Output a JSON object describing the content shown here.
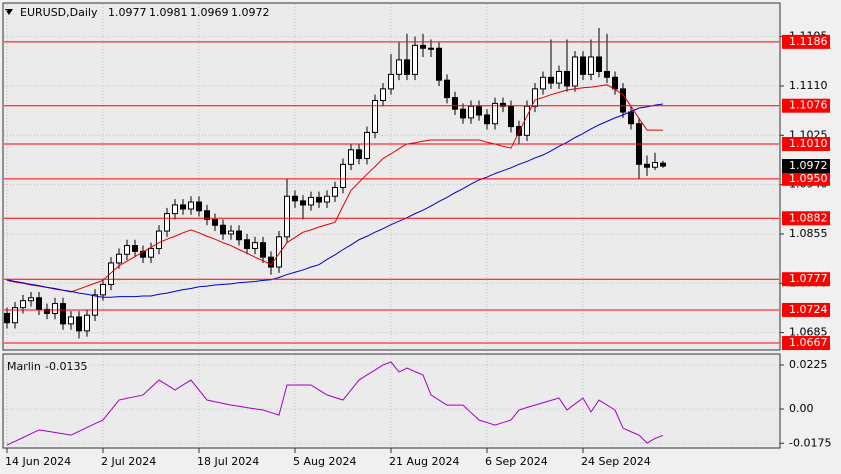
{
  "chart_data": [
    {
      "type": "candlestick",
      "title": "EURUSD,Daily",
      "categories": [
        "14 Jun 2024",
        null,
        null,
        null,
        null,
        null,
        null,
        null,
        null,
        null,
        null,
        null,
        "2 Jul 2024",
        null,
        null,
        null,
        null,
        null,
        null,
        null,
        null,
        null,
        null,
        null,
        "18 Jul 2024",
        null,
        null,
        null,
        null,
        null,
        null,
        null,
        null,
        null,
        null,
        null,
        "5 Aug 2024",
        null,
        null,
        null,
        null,
        null,
        null,
        null,
        null,
        null,
        null,
        null,
        "21 Aug 2024",
        null,
        null,
        null,
        null,
        null,
        null,
        null,
        null,
        null,
        null,
        null,
        "6 Sep 2024",
        null,
        null,
        null,
        null,
        null,
        null,
        null,
        null,
        null,
        null,
        null,
        "24 Sep 2024",
        null,
        null,
        null,
        null,
        null,
        null,
        null,
        null,
        null,
        null
      ],
      "open": [
        1.0718,
        1.0702,
        1.0728,
        1.074,
        1.0745,
        1.0725,
        1.0718,
        1.0735,
        1.07,
        1.0712,
        1.0688,
        1.0715,
        1.075,
        1.0768,
        1.0805,
        1.082,
        1.0835,
        1.0825,
        1.0815,
        1.083,
        1.086,
        1.089,
        1.0905,
        1.0898,
        1.091,
        1.0895,
        1.088,
        1.087,
        1.0855,
        1.086,
        1.0845,
        1.083,
        1.084,
        1.0815,
        1.0798,
        1.085,
        1.092,
        1.0912,
        1.0905,
        1.0918,
        1.091,
        1.092,
        1.0935,
        1.0975,
        1.1,
        1.0985,
        1.103,
        1.1085,
        1.1105,
        1.113,
        1.1155,
        1.113,
        1.118,
        1.1175,
        1.1175,
        1.112,
        1.109,
        1.107,
        1.1055,
        1.1075,
        1.106,
        1.1045,
        1.108,
        1.1075,
        1.104,
        1.1025,
        1.1075,
        1.1105,
        1.1125,
        1.1115,
        1.1135,
        1.111,
        1.116,
        1.113,
        1.116,
        1.1135,
        1.1125,
        1.1105,
        1.1065,
        1.1045,
        1.0975,
        1.097,
        1.0977
      ],
      "high": [
        1.0728,
        1.0738,
        1.075,
        1.0755,
        1.0755,
        1.0735,
        1.0745,
        1.0745,
        1.0722,
        1.0722,
        1.0725,
        1.076,
        1.0778,
        1.0815,
        1.083,
        1.0845,
        1.0845,
        1.0835,
        1.084,
        1.087,
        1.09,
        1.0915,
        1.0915,
        1.092,
        1.092,
        1.0905,
        1.089,
        1.088,
        1.087,
        1.087,
        1.0855,
        1.085,
        1.085,
        1.0825,
        1.086,
        1.095,
        1.093,
        1.0922,
        1.0928,
        1.0928,
        1.093,
        1.0945,
        1.0985,
        1.101,
        1.101,
        1.104,
        1.1095,
        1.1115,
        1.1165,
        1.1185,
        1.12,
        1.1195,
        1.12,
        1.119,
        1.1185,
        1.113,
        1.11,
        1.108,
        1.1085,
        1.1085,
        1.107,
        1.109,
        1.109,
        1.1085,
        1.105,
        1.1085,
        1.1115,
        1.1135,
        1.119,
        1.1145,
        1.119,
        1.117,
        1.117,
        1.119,
        1.121,
        1.12,
        1.1135,
        1.1115,
        1.1075,
        1.1055,
        1.099,
        1.0995,
        1.0981
      ],
      "low": [
        1.0692,
        1.0692,
        1.0718,
        1.073,
        1.0715,
        1.0708,
        1.0708,
        1.069,
        1.069,
        1.0675,
        1.0678,
        1.0705,
        1.074,
        1.0758,
        1.0795,
        1.081,
        1.0815,
        1.0805,
        1.0805,
        1.082,
        1.085,
        1.088,
        1.0888,
        1.0888,
        1.0885,
        1.087,
        1.086,
        1.0845,
        1.0845,
        1.0835,
        1.082,
        1.082,
        1.0805,
        1.0785,
        1.0788,
        1.084,
        1.09,
        1.088,
        1.0895,
        1.09,
        1.09,
        1.091,
        1.0925,
        1.0965,
        1.0975,
        1.0975,
        1.102,
        1.1075,
        1.1095,
        1.112,
        1.112,
        1.112,
        1.116,
        1.116,
        1.111,
        1.108,
        1.106,
        1.1045,
        1.1045,
        1.105,
        1.1035,
        1.1035,
        1.1065,
        1.103,
        1.101,
        1.1015,
        1.1065,
        1.1095,
        1.1105,
        1.1105,
        1.11,
        1.11,
        1.112,
        1.112,
        1.1125,
        1.1115,
        1.1095,
        1.1055,
        1.1035,
        1.095,
        1.0955,
        1.0965,
        1.0969
      ],
      "close": [
        1.0702,
        1.0728,
        1.074,
        1.0745,
        1.0725,
        1.0718,
        1.0735,
        1.07,
        1.0712,
        1.0688,
        1.0715,
        1.075,
        1.0768,
        1.0805,
        1.082,
        1.0835,
        1.0825,
        1.0815,
        1.083,
        1.086,
        1.089,
        1.0905,
        1.0898,
        1.091,
        1.0895,
        1.088,
        1.087,
        1.0855,
        1.086,
        1.0845,
        1.083,
        1.084,
        1.0815,
        1.0798,
        1.085,
        1.092,
        1.0912,
        1.0905,
        1.0918,
        1.091,
        1.092,
        1.0935,
        1.0975,
        1.1,
        1.0985,
        1.103,
        1.1085,
        1.1105,
        1.113,
        1.1155,
        1.113,
        1.118,
        1.1175,
        1.1175,
        1.112,
        1.109,
        1.107,
        1.1055,
        1.1075,
        1.106,
        1.1045,
        1.108,
        1.1075,
        1.104,
        1.1025,
        1.1075,
        1.1105,
        1.1125,
        1.1115,
        1.1135,
        1.111,
        1.116,
        1.113,
        1.116,
        1.1135,
        1.1125,
        1.1105,
        1.1065,
        1.1045,
        1.0975,
        1.097,
        1.0978,
        1.0972
      ],
      "bull_color": "#ffffff",
      "bear_color": "#000000",
      "series": [
        {
          "color": "#e00000",
          "values": [
            1.0775,
            1.0772,
            1.077,
            1.0767,
            1.0765,
            1.0763,
            1.076,
            1.0758,
            1.0755,
            1.076,
            1.0765,
            1.077,
            1.0775,
            1.0788,
            1.08,
            1.0808,
            1.0816,
            1.0824,
            1.0832,
            1.084,
            1.0846,
            1.0851,
            1.0857,
            1.0862,
            1.0857,
            1.0851,
            1.0846,
            1.084,
            1.0835,
            1.0828,
            1.0822,
            1.0815,
            1.0809,
            1.0802,
            1.0821,
            1.084,
            1.0849,
            1.0858,
            1.0862,
            1.0867,
            1.0871,
            1.0875,
            1.0903,
            1.093,
            1.0944,
            1.0958,
            1.0971,
            1.0985,
            1.0993,
            1.1002,
            1.101,
            1.1012,
            1.1015,
            1.1017,
            1.1017,
            1.1017,
            1.1017,
            1.1017,
            1.1017,
            1.1017,
            1.1013,
            1.101,
            1.1006,
            1.1003,
            1.1031,
            1.1058,
            1.1086,
            1.109,
            1.1095,
            1.1099,
            1.1103,
            1.1105,
            1.1107,
            1.1108,
            1.111,
            1.1112,
            1.1104,
            1.1095,
            1.1075,
            1.1054,
            1.1034,
            1.1034,
            1.1034
          ]
        },
        {
          "color": "#0000cc",
          "values": [
            1.0776,
            1.0773,
            1.0771,
            1.0768,
            1.0766,
            1.0763,
            1.0761,
            1.0758,
            1.0756,
            1.0753,
            1.0751,
            1.0748,
            1.0746,
            1.0746,
            1.0747,
            1.0747,
            1.0747,
            1.0748,
            1.0748,
            1.0751,
            1.0753,
            1.0756,
            1.0759,
            1.0761,
            1.0764,
            1.0765,
            1.0767,
            1.0768,
            1.0769,
            1.0771,
            1.0772,
            1.0773,
            1.0775,
            1.0776,
            1.078,
            1.0785,
            1.0789,
            1.0793,
            1.0798,
            1.0802,
            1.0811,
            1.0819,
            1.0828,
            1.0836,
            1.0845,
            1.0851,
            1.0858,
            1.0864,
            1.0871,
            1.0877,
            1.0883,
            1.089,
            1.0896,
            1.0903,
            1.0911,
            1.0918,
            1.0926,
            1.0933,
            1.0941,
            1.0948,
            1.0953,
            1.0959,
            1.0964,
            1.0969,
            1.0975,
            1.098,
            1.0986,
            1.0991,
            1.0998,
            1.1006,
            1.1013,
            1.1021,
            1.1028,
            1.1036,
            1.1043,
            1.1049,
            1.1055,
            1.106,
            1.1066,
            1.1072,
            1.1074,
            1.1077,
            1.1079
          ]
        }
      ],
      "levels": [
        1.1186,
        1.1076,
        {
          "value": 1.101,
          "label": "1.1010"
        },
        {
          "value": 1.095,
          "label": "1.0950"
        },
        1.0882,
        1.0777,
        1.0724,
        1.0667
      ],
      "level_color": "#ff0000",
      "ylim": [
        1.0655,
        1.1253
      ],
      "yticks": [
        1.1195,
        {
          "value": 1.111,
          "label": "1.1110"
        },
        1.1025,
        {
          "value": 1.094,
          "label": "1.0940"
        },
        1.0855,
        {
          "value": 1.077,
          "label": "1.0770"
        },
        1.0685
      ],
      "grid": true
    },
    {
      "type": "line",
      "series": [
        {
          "name": "Marlin",
          "color": "#a000c8",
          "values": [
            -0.0184,
            -0.0165,
            -0.0146,
            -0.0126,
            -0.0107,
            -0.0113,
            -0.012,
            -0.0126,
            -0.0133,
            -0.0114,
            -0.0094,
            -0.0075,
            -0.0056,
            -0.0005,
            0.0046,
            0.0055,
            0.0063,
            0.0072,
            0.011,
            0.0148,
            0.0123,
            0.0097,
            0.0123,
            0.0148,
            0.0097,
            0.0046,
            0.0037,
            0.0029,
            0.002,
            0.0014,
            0.0007,
            0.0001,
            -0.0005,
            -0.0018,
            -0.0031,
            0.0123,
            0.0123,
            0.0123,
            0.0123,
            0.0097,
            0.0072,
            0.0059,
            0.0046,
            0.0097,
            0.0148,
            0.0174,
            0.0199,
            0.0225,
            0.024,
            0.0189,
            0.0209,
            0.0191,
            0.0174,
            0.0072,
            0.0046,
            0.002,
            0.002,
            0.002,
            -0.0018,
            -0.0056,
            -0.0069,
            -0.0082,
            -0.0069,
            -0.0056,
            -0.0005,
            0.0008,
            0.002,
            0.0032,
            0.0044,
            0.0056,
            -0.0005,
            0.0026,
            0.0056,
            -0.0015,
            0.0046,
            0.002,
            -0.0005,
            -0.0097,
            -0.0116,
            -0.0133,
            -0.0174,
            -0.015,
            -0.0135
          ]
        }
      ],
      "ylim": [
        -0.0199,
        0.0281
      ],
      "yticks": [
        0.0225,
        {
          "value": 0,
          "label": "0.00"
        },
        -0.0175
      ],
      "grid": true
    }
  ]
}
